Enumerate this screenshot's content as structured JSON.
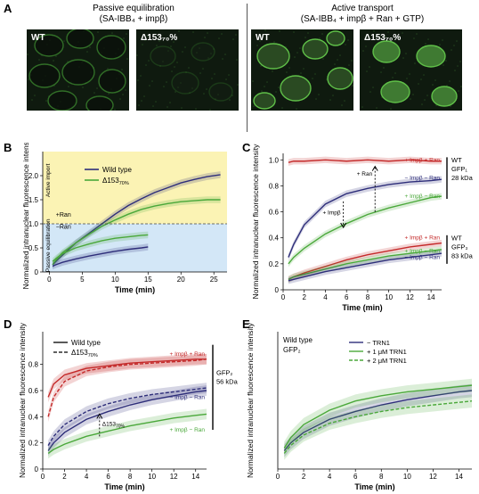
{
  "panel_a": {
    "letter": "A",
    "header_passive": [
      "Passive equilibration",
      "(SA-IBB₄ + impβ)"
    ],
    "header_active": [
      "Active transport",
      "(SA-IBB₄ + impβ + Ran + GTP)"
    ],
    "images": [
      {
        "label": "WT",
        "mode": "passive"
      },
      {
        "label": "Δ153₇₀%",
        "mode": "passive"
      },
      {
        "label": "WT",
        "mode": "active"
      },
      {
        "label": "Δ153₇₀%",
        "mode": "active"
      }
    ],
    "colors": {
      "nuclear_rim": "#4aa83a",
      "background": "#0f1a0f",
      "bright_nucleus": "#5fbf48"
    }
  },
  "chart_data": [
    {
      "panel": "B",
      "type": "line",
      "xlabel": "Time (min)",
      "ylabel": "Normalized intranuclear fluorescence intensity",
      "xlim": [
        -1,
        27
      ],
      "ylim": [
        0,
        2.5
      ],
      "xticks": [
        0,
        5,
        10,
        15,
        20,
        25
      ],
      "yticks": [
        0,
        0.5,
        1.0,
        1.5,
        2.0
      ],
      "ytick_labels": [
        "0",
        "0.5",
        "1.0",
        "1.5",
        "2.0"
      ],
      "region_labels": [
        "Active import",
        "Passive equilibration"
      ],
      "annotations": [
        "+Ran",
        "−Ran"
      ],
      "legend": [
        "Wild type",
        "Δ15370%"
      ],
      "legend_position": "top-left",
      "series": [
        {
          "name": "Wild type",
          "condition": "+Ran",
          "color": "#2e2e7a",
          "x": [
            0.5,
            1,
            2,
            4,
            6,
            8,
            10,
            12,
            14,
            16,
            18,
            20,
            22,
            24,
            26
          ],
          "y": [
            0.15,
            0.22,
            0.35,
            0.6,
            0.8,
            1.0,
            1.2,
            1.38,
            1.52,
            1.65,
            1.75,
            1.85,
            1.92,
            1.98,
            2.02
          ]
        },
        {
          "name": "Δ15370%",
          "condition": "+Ran",
          "color": "#4aa83a",
          "x": [
            0.5,
            1,
            2,
            4,
            6,
            8,
            10,
            12,
            14,
            16,
            18,
            20,
            22,
            24,
            26
          ],
          "y": [
            0.15,
            0.25,
            0.4,
            0.6,
            0.78,
            0.95,
            1.08,
            1.2,
            1.3,
            1.37,
            1.42,
            1.46,
            1.48,
            1.5,
            1.5
          ]
        },
        {
          "name": "Wild type",
          "condition": "−Ran",
          "color": "#2e2e7a",
          "x": [
            0.5,
            1,
            2,
            4,
            6,
            8,
            10,
            12,
            14,
            15
          ],
          "y": [
            0.12,
            0.15,
            0.2,
            0.27,
            0.33,
            0.38,
            0.43,
            0.47,
            0.5,
            0.52
          ]
        },
        {
          "name": "Δ15370%",
          "condition": "−Ran",
          "color": "#4aa83a",
          "x": [
            0.5,
            1,
            2,
            4,
            6,
            8,
            10,
            12,
            14,
            15
          ],
          "y": [
            0.22,
            0.28,
            0.38,
            0.5,
            0.58,
            0.65,
            0.7,
            0.73,
            0.76,
            0.77
          ]
        }
      ]
    },
    {
      "panel": "C",
      "type": "line",
      "xlabel": "Time (min)",
      "ylabel": "Normalized intranuclear fluorescence intensity",
      "xlim": [
        0,
        15
      ],
      "ylim": [
        0,
        1.05
      ],
      "xticks": [
        0,
        2,
        4,
        6,
        8,
        10,
        12,
        14
      ],
      "yticks": [
        0,
        0.2,
        0.4,
        0.6,
        0.8,
        1.0
      ],
      "ytick_labels": [
        "0",
        "0.2",
        "0.4",
        "0.6",
        "0.8",
        "1.0"
      ],
      "annotations": [
        "+ Ran",
        "+ Impβ"
      ],
      "group_labels": [
        [
          "WT",
          "GFP₁",
          "28 kDa"
        ],
        [
          "WT",
          "GFP₃",
          "83 kDa"
        ]
      ],
      "series": [
        {
          "name": "+ Impβ + Ran",
          "group": "28 kDa",
          "color": "#c42a2a",
          "x": [
            0.5,
            1,
            2,
            4,
            6,
            8,
            10,
            12,
            14,
            15
          ],
          "y": [
            0.98,
            0.99,
            0.99,
            1.0,
            0.99,
            1.0,
            0.99,
            1.0,
            0.99,
            0.99
          ]
        },
        {
          "name": "− Impβ − Ran",
          "group": "28 kDa",
          "color": "#2e2e7a",
          "x": [
            0.5,
            1,
            2,
            4,
            6,
            8,
            10,
            12,
            14,
            15
          ],
          "y": [
            0.25,
            0.35,
            0.5,
            0.66,
            0.74,
            0.78,
            0.81,
            0.83,
            0.84,
            0.85
          ]
        },
        {
          "name": "+ Impβ − Ran",
          "group": "28 kDa",
          "color": "#4aa83a",
          "x": [
            0.5,
            1,
            2,
            4,
            6,
            8,
            10,
            12,
            14,
            15
          ],
          "y": [
            0.2,
            0.25,
            0.32,
            0.43,
            0.51,
            0.58,
            0.63,
            0.67,
            0.71,
            0.72
          ]
        },
        {
          "name": "+ Impβ + Ran",
          "group": "83 kDa",
          "color": "#c42a2a",
          "x": [
            0.5,
            1,
            2,
            4,
            6,
            8,
            10,
            12,
            14,
            15
          ],
          "y": [
            0.08,
            0.1,
            0.13,
            0.18,
            0.23,
            0.27,
            0.3,
            0.33,
            0.35,
            0.36
          ]
        },
        {
          "name": "+ Impβ − Ran",
          "group": "83 kDa",
          "color": "#4aa83a",
          "x": [
            0.5,
            1,
            2,
            4,
            6,
            8,
            10,
            12,
            14,
            15
          ],
          "y": [
            0.08,
            0.1,
            0.12,
            0.16,
            0.2,
            0.23,
            0.26,
            0.28,
            0.3,
            0.31
          ]
        },
        {
          "name": "− Impβ − Ran",
          "group": "83 kDa",
          "color": "#2e2e7a",
          "x": [
            0.5,
            1,
            2,
            4,
            6,
            8,
            10,
            12,
            14,
            15
          ],
          "y": [
            0.07,
            0.08,
            0.1,
            0.14,
            0.17,
            0.2,
            0.23,
            0.25,
            0.27,
            0.28
          ]
        }
      ]
    },
    {
      "panel": "D",
      "type": "line",
      "xlabel": "Time (min)",
      "ylabel": "Normalized intranuclear fluorescence intensity",
      "xlim": [
        0,
        15
      ],
      "ylim": [
        0,
        1.05
      ],
      "xticks": [
        0,
        2,
        4,
        6,
        8,
        10,
        12,
        14
      ],
      "yticks": [
        0,
        0.2,
        0.4,
        0.6,
        0.8
      ],
      "ytick_labels": [
        "0",
        "0.2",
        "0.4",
        "0.6",
        "0.8"
      ],
      "legend": [
        "Wild type",
        "Δ15370%"
      ],
      "legend_position": "top-left",
      "annotations": [
        "Δ15370%"
      ],
      "group_labels": [
        [
          "GFP₂",
          "56 kDa"
        ]
      ],
      "series": [
        {
          "name": "+ Impβ + Ran",
          "strain": "Wild type",
          "color": "#c42a2a",
          "x": [
            0.5,
            1,
            2,
            4,
            6,
            8,
            10,
            12,
            14,
            15
          ],
          "y": [
            0.55,
            0.65,
            0.72,
            0.77,
            0.79,
            0.81,
            0.82,
            0.83,
            0.84,
            0.84
          ]
        },
        {
          "name": "+ Impβ + Ran",
          "strain": "Δ15370%",
          "color": "#c42a2a",
          "x": [
            0.5,
            1,
            2,
            4,
            6,
            8,
            10,
            12,
            14,
            15
          ],
          "y": [
            0.4,
            0.55,
            0.67,
            0.75,
            0.78,
            0.8,
            0.81,
            0.82,
            0.83,
            0.84
          ]
        },
        {
          "name": "− Impβ − Ran",
          "strain": "Wild type",
          "color": "#2e2e7a",
          "x": [
            0.5,
            1,
            2,
            4,
            6,
            8,
            10,
            12,
            14,
            15
          ],
          "y": [
            0.14,
            0.2,
            0.28,
            0.38,
            0.44,
            0.49,
            0.53,
            0.56,
            0.59,
            0.6
          ]
        },
        {
          "name": "− Impβ − Ran",
          "strain": "Δ15370%",
          "color": "#2e2e7a",
          "x": [
            0.5,
            1,
            2,
            4,
            6,
            8,
            10,
            12,
            14,
            15
          ],
          "y": [
            0.18,
            0.25,
            0.34,
            0.44,
            0.5,
            0.54,
            0.57,
            0.59,
            0.61,
            0.62
          ]
        },
        {
          "name": "+ Impβ − Ran",
          "strain": "Wild type",
          "color": "#4aa83a",
          "x": [
            0.5,
            1,
            2,
            4,
            6,
            8,
            10,
            12,
            14,
            15
          ],
          "y": [
            0.12,
            0.15,
            0.19,
            0.25,
            0.29,
            0.33,
            0.36,
            0.39,
            0.41,
            0.42
          ]
        }
      ]
    },
    {
      "panel": "E",
      "type": "line",
      "xlabel": "Time (min)",
      "ylabel": "Normalized intranuclear fluorescence intensity",
      "xlim": [
        0,
        15
      ],
      "ylim": [
        0,
        1.05
      ],
      "xticks": [
        0,
        2,
        4,
        6,
        8,
        10,
        12,
        14
      ],
      "subtitle": [
        "Wild type",
        "GFP₂"
      ],
      "legend": [
        "− TRN1",
        "+ 1 μM TRN1",
        "+ 2 μM TRN1"
      ],
      "legend_position": "top-center",
      "series": [
        {
          "name": "− TRN1",
          "color": "#2e2e7a",
          "x": [
            0.5,
            1,
            2,
            4,
            6,
            8,
            10,
            12,
            14,
            15
          ],
          "y": [
            0.14,
            0.2,
            0.28,
            0.38,
            0.44,
            0.49,
            0.53,
            0.56,
            0.59,
            0.6
          ]
        },
        {
          "name": "+ 1 μM TRN1",
          "color": "#4aa83a",
          "x": [
            0.5,
            1,
            2,
            4,
            6,
            8,
            10,
            12,
            14,
            15
          ],
          "y": [
            0.16,
            0.24,
            0.34,
            0.45,
            0.52,
            0.56,
            0.59,
            0.61,
            0.63,
            0.64
          ]
        },
        {
          "name": "+ 2 μM TRN1",
          "color": "#4aa83a",
          "dashed": true,
          "x": [
            0.5,
            1,
            2,
            4,
            6,
            8,
            10,
            12,
            14,
            15
          ],
          "y": [
            0.12,
            0.18,
            0.26,
            0.35,
            0.4,
            0.44,
            0.47,
            0.49,
            0.51,
            0.52
          ]
        }
      ]
    }
  ]
}
